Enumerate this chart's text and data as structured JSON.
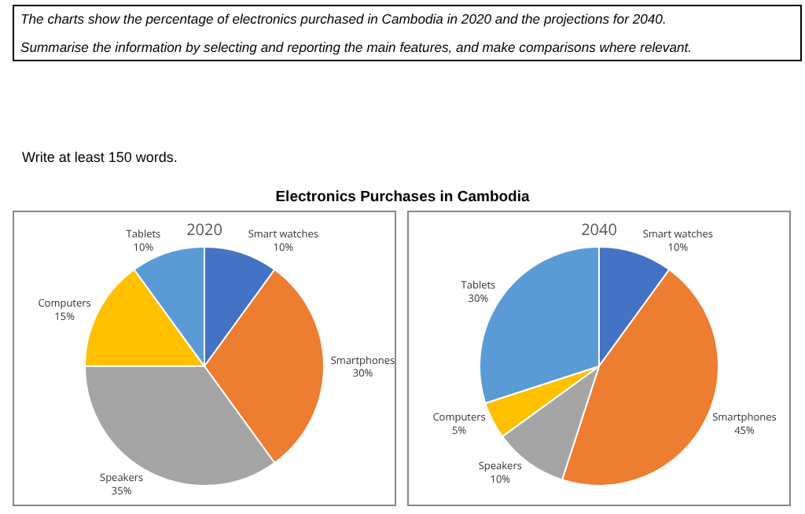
{
  "chart_data": [
    {
      "type": "pie",
      "title": "Electronics Purchases in Cambodia",
      "subtitle": "2020",
      "annotations": [
        "The charts show the percentage of electronics purchased in Cambodia in 2020 and the projections for 2040.",
        "Summarise the information by selecting and reporting the main features, and make comparisons where relevant.",
        "Write at least 150 words."
      ],
      "categories": [
        "Smart watches",
        "Smartphones",
        "Speakers",
        "Computers",
        "Tablets"
      ],
      "values": [
        10,
        30,
        35,
        15,
        10
      ],
      "value_labels": [
        "10%",
        "30%",
        "35%",
        "15%",
        "10%"
      ],
      "colors": [
        "#4472c4",
        "#ed7d31",
        "#a5a5a5",
        "#ffc000",
        "#5b9bd5"
      ],
      "legend": false
    },
    {
      "type": "pie",
      "title": "2040",
      "categories": [
        "Smart watches",
        "Smartphones",
        "Speakers",
        "Computers",
        "Tablets"
      ],
      "values": [
        10,
        45,
        10,
        5,
        30
      ],
      "value_labels": [
        "10%",
        "45%",
        "10%",
        "5%",
        "30%"
      ],
      "colors": [
        "#4472c4",
        "#ed7d31",
        "#a5a5a5",
        "#ffc000",
        "#5b9bd5"
      ],
      "legend": false
    }
  ]
}
